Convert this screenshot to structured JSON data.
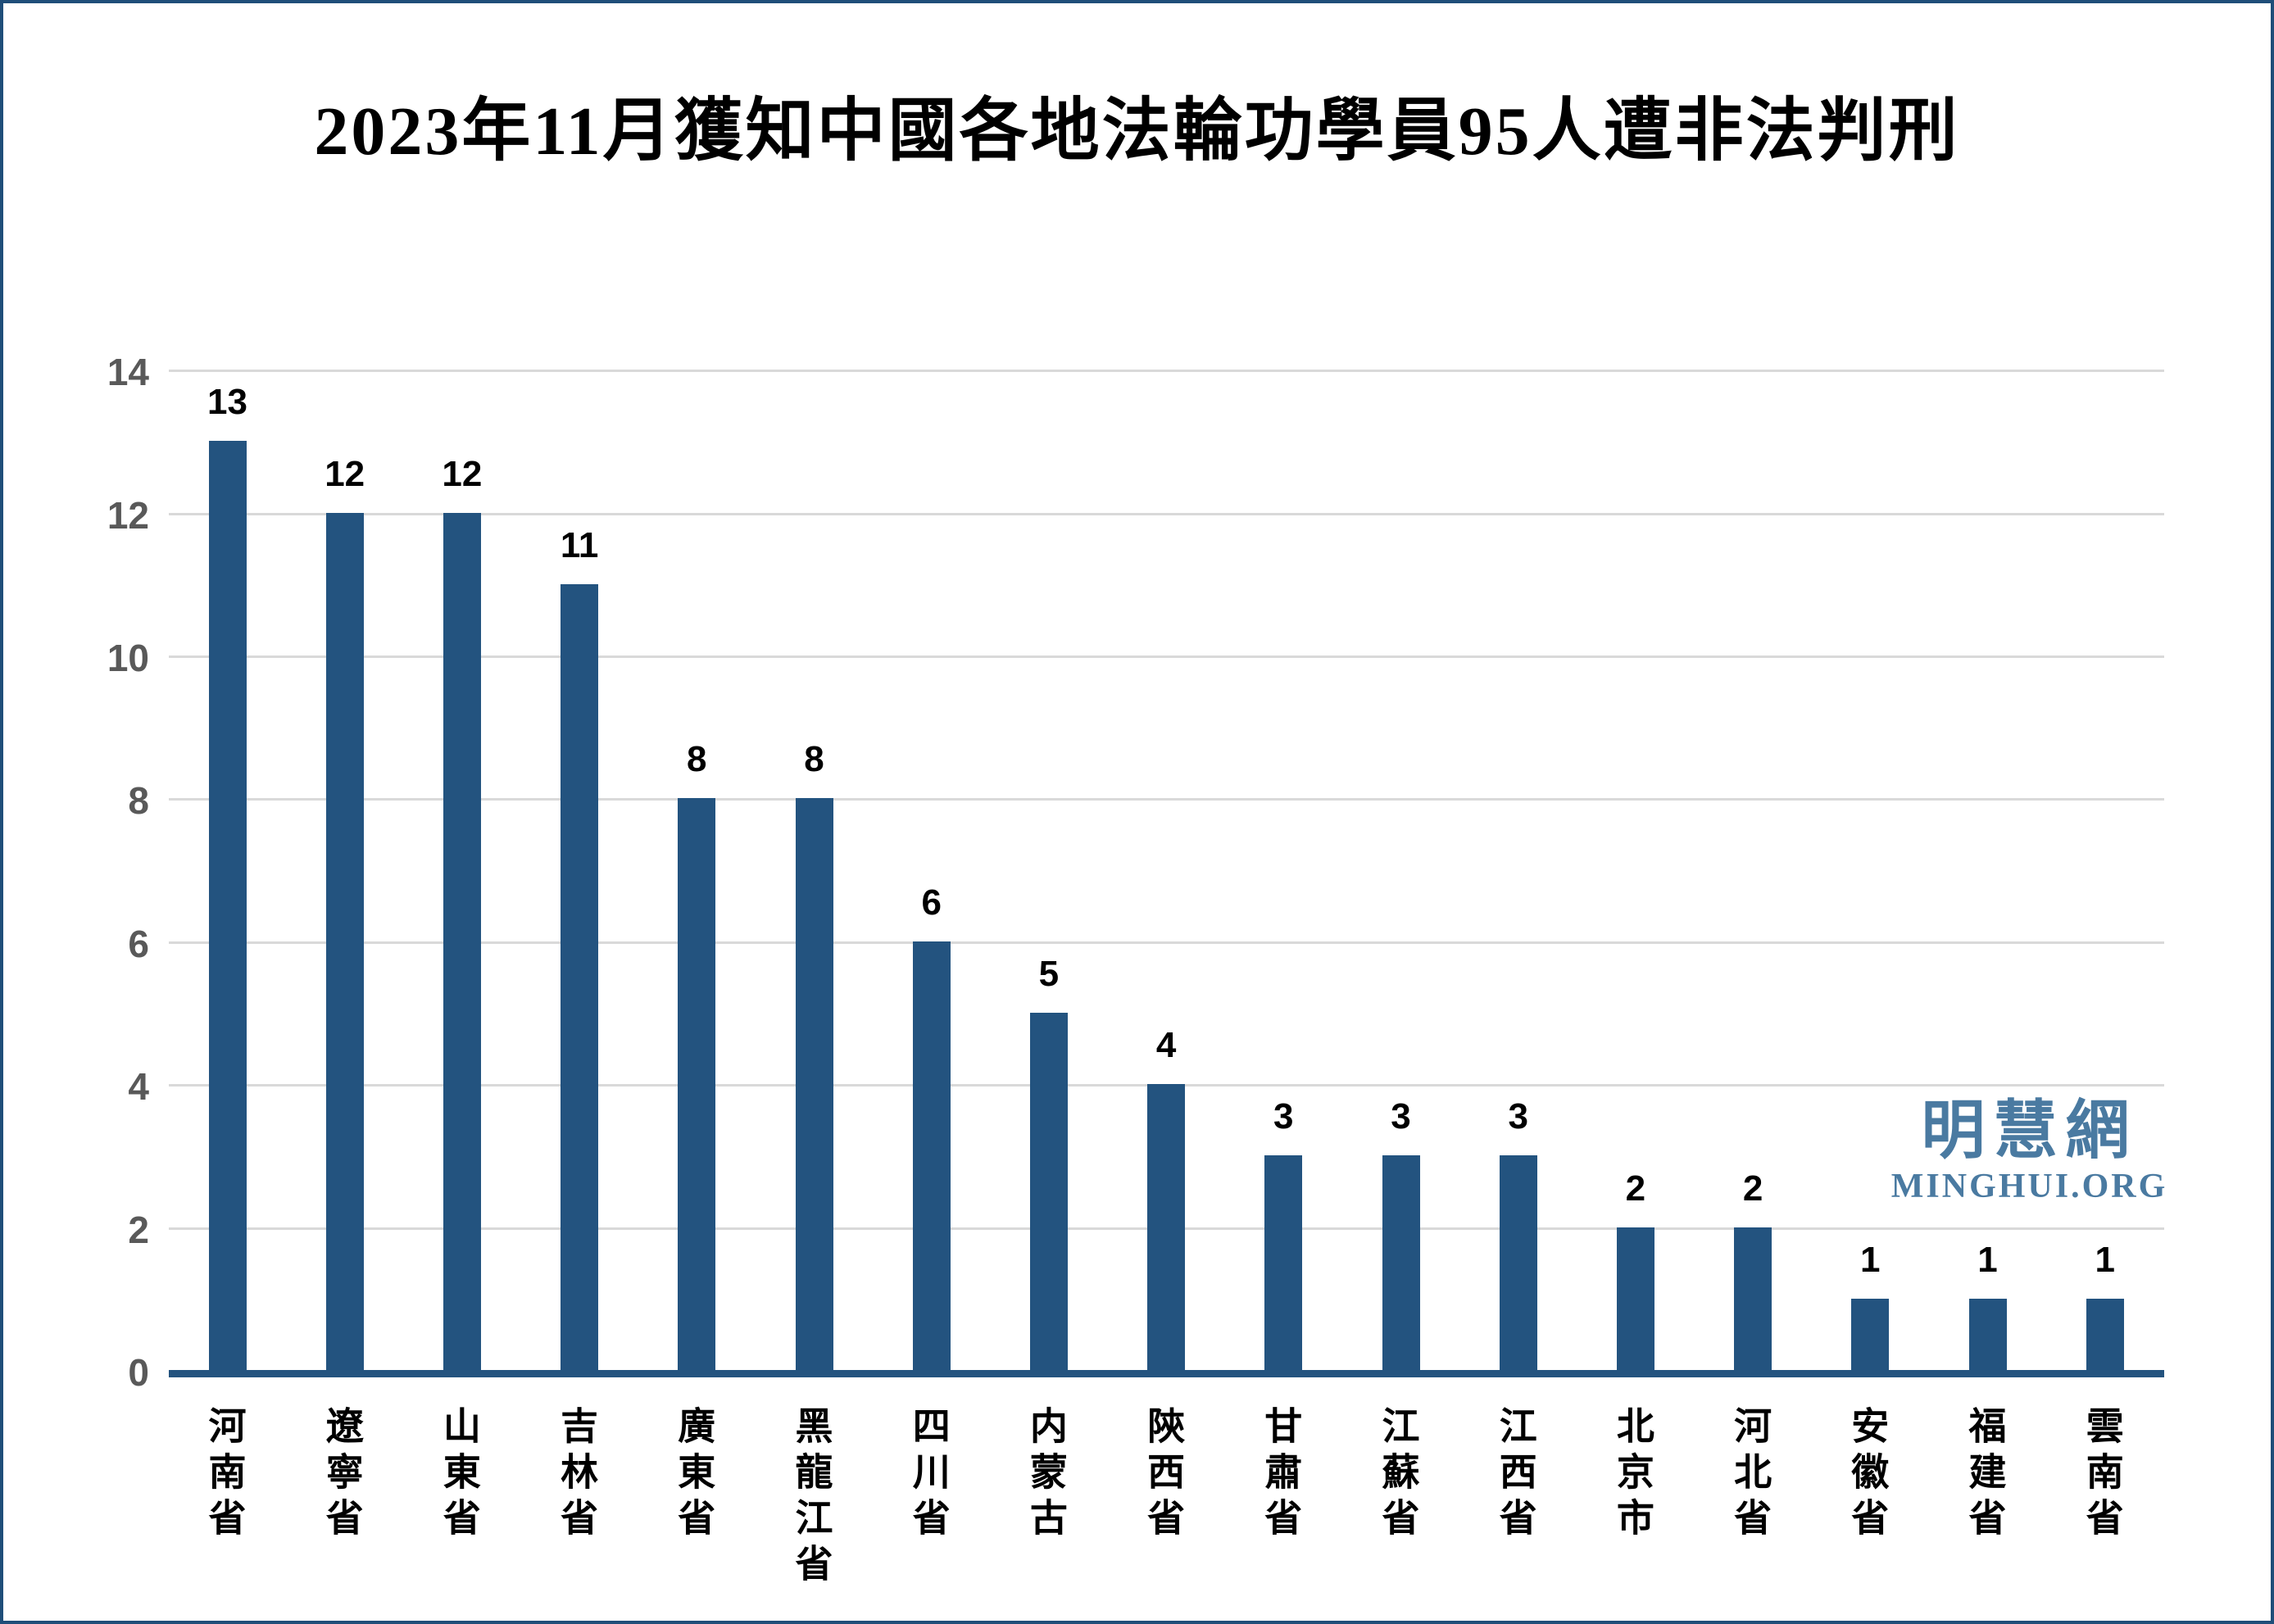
{
  "page": {
    "background_color": "#FFFFFF",
    "border_color": "#1F4E79"
  },
  "chart_data": {
    "type": "bar",
    "title": "2023年11月獲知中國各地法輪功學員95人遭非法判刑",
    "categories": [
      "河南省",
      "遼寧省",
      "山東省",
      "吉林省",
      "廣東省",
      "黑龍江省",
      "四川省",
      "内蒙古",
      "陝西省",
      "甘肅省",
      "江蘇省",
      "江西省",
      "北京市",
      "河北省",
      "安徽省",
      "福建省",
      "雲南省"
    ],
    "values": [
      13,
      12,
      12,
      11,
      8,
      8,
      6,
      5,
      4,
      3,
      3,
      3,
      2,
      2,
      1,
      1,
      1
    ],
    "total_mentioned_in_title": 95,
    "y_ticks": [
      0,
      2,
      4,
      6,
      8,
      10,
      12,
      14
    ],
    "ylim": [
      0,
      14
    ],
    "xlabel": "",
    "ylabel": "",
    "grid": "horizontal",
    "legend": "none",
    "bar_color": "#23537F",
    "baseline_color": "#23537F",
    "gridline_color": "#D9D9D9",
    "tick_label_color": "#595959",
    "value_label_color": "#000000"
  },
  "watermark": {
    "cjk": "明慧網",
    "latin": "MINGHUI.ORG",
    "color": "#4A7AA1"
  }
}
